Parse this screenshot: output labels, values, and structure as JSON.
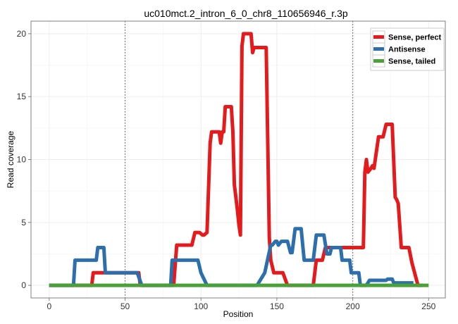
{
  "chart_data": {
    "type": "line",
    "title": "uc010mct.2_intron_6_0_chr8_110656946_r.3p",
    "xlabel": "Position",
    "ylabel": "Read coverage",
    "xlim": [
      -12,
      261
    ],
    "ylim": [
      -1,
      21
    ],
    "xticks": [
      "0",
      "50",
      "100",
      "150",
      "200",
      "250"
    ],
    "yticks": [
      "0",
      "5",
      "10",
      "15",
      "20"
    ],
    "vlines": [
      50,
      200
    ],
    "legend_position": "top-right",
    "grid": true,
    "series": [
      {
        "name": "Sense, perfect",
        "color": "#e41a1c",
        "points": [
          [
            0,
            0
          ],
          [
            28,
            0
          ],
          [
            29,
            1
          ],
          [
            45,
            1
          ],
          [
            59,
            1
          ],
          [
            60,
            0
          ],
          [
            82,
            0
          ],
          [
            84,
            3.2
          ],
          [
            94,
            3.2
          ],
          [
            96,
            4.2
          ],
          [
            99,
            4.2
          ],
          [
            101,
            4.0
          ],
          [
            102,
            4.0
          ],
          [
            104,
            4.2
          ],
          [
            106,
            11.3
          ],
          [
            107,
            12.2
          ],
          [
            112,
            12.2
          ],
          [
            113,
            11.3
          ],
          [
            114,
            12.2
          ],
          [
            115,
            12.2
          ],
          [
            116,
            14.2
          ],
          [
            120,
            14.2
          ],
          [
            121,
            12.2
          ],
          [
            122,
            8
          ],
          [
            124,
            6
          ],
          [
            125,
            4.8
          ],
          [
            126,
            4
          ],
          [
            127,
            19
          ],
          [
            128,
            20
          ],
          [
            133,
            20
          ],
          [
            134,
            18.5
          ],
          [
            135,
            18.9
          ],
          [
            143,
            18.9
          ],
          [
            145,
            3.8
          ],
          [
            146,
            2
          ],
          [
            148,
            1
          ],
          [
            154,
            1
          ],
          [
            157,
            0
          ],
          [
            174,
            0
          ],
          [
            176,
            2
          ],
          [
            178,
            2
          ],
          [
            180,
            2
          ],
          [
            182,
            3
          ],
          [
            188,
            3
          ],
          [
            207,
            3
          ],
          [
            208,
            9
          ],
          [
            209,
            10
          ],
          [
            210,
            9
          ],
          [
            212,
            9.3
          ],
          [
            213,
            9.5
          ],
          [
            214,
            9.3
          ],
          [
            217,
            11.8
          ],
          [
            220,
            11.8
          ],
          [
            222,
            12.8
          ],
          [
            226,
            12.8
          ],
          [
            228,
            7
          ],
          [
            229,
            6.8
          ],
          [
            230,
            6.5
          ],
          [
            232,
            3
          ],
          [
            237,
            3
          ],
          [
            239,
            1.8
          ],
          [
            243,
            0
          ],
          [
            246,
            0
          ]
        ]
      },
      {
        "name": "Antisense",
        "color": "#2c6fac",
        "points": [
          [
            0,
            0
          ],
          [
            16,
            0
          ],
          [
            17,
            2
          ],
          [
            31,
            2
          ],
          [
            32,
            3
          ],
          [
            36,
            3
          ],
          [
            37,
            1
          ],
          [
            58,
            1
          ],
          [
            61,
            0
          ],
          [
            80,
            0
          ],
          [
            81,
            2
          ],
          [
            98,
            2
          ],
          [
            100,
            1
          ],
          [
            104,
            0
          ],
          [
            137,
            0
          ],
          [
            142,
            1
          ],
          [
            146,
            3.2
          ],
          [
            147,
            3.2
          ],
          [
            149,
            3.5
          ],
          [
            150,
            3.5
          ],
          [
            151,
            3.2
          ],
          [
            153,
            3.5
          ],
          [
            157,
            3.5
          ],
          [
            159,
            2.6
          ],
          [
            160,
            2.6
          ],
          [
            161,
            3.5
          ],
          [
            162,
            4.5
          ],
          [
            166,
            4.5
          ],
          [
            168,
            2
          ],
          [
            174,
            2
          ],
          [
            176,
            4
          ],
          [
            181,
            4
          ],
          [
            183,
            2.5
          ],
          [
            185,
            2.5
          ],
          [
            186,
            3
          ],
          [
            192,
            3
          ],
          [
            193,
            2
          ],
          [
            198,
            2
          ],
          [
            199,
            1
          ],
          [
            204,
            1
          ],
          [
            205,
            0
          ],
          [
            209,
            0
          ],
          [
            211,
            0.4
          ],
          [
            222,
            0.4
          ],
          [
            223,
            0.5
          ],
          [
            226,
            0.5
          ],
          [
            227,
            0.2
          ],
          [
            240,
            0.2
          ]
        ]
      },
      {
        "name": "Sense, tailed",
        "color": "#4aa13a",
        "points": [
          [
            0,
            0
          ],
          [
            250,
            0
          ]
        ]
      }
    ]
  }
}
